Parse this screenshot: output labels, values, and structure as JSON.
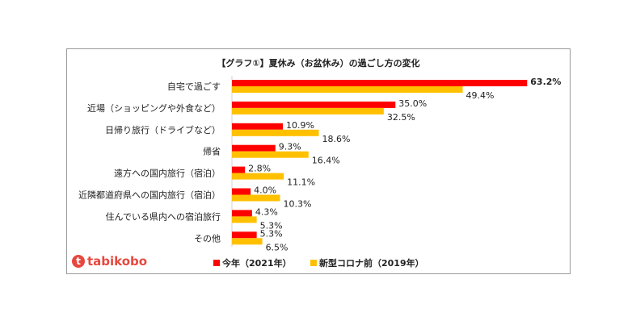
{
  "chart_data": {
    "type": "bar",
    "orientation": "horizontal",
    "title": "【グラフ①】夏休み（お盆休み）の過ごし方の変化",
    "categories": [
      "自宅で過ごす",
      "近場（ショッピングや外食など）",
      "日帰り旅行（ドライブなど）",
      "帰省",
      "遠方への国内旅行（宿泊）",
      "近隣都道府県への国内旅行（宿泊）",
      "住んでいる県内への宿泊旅行",
      "その他"
    ],
    "series": [
      {
        "name": "今年（2021年）",
        "color": "#ff0000",
        "values": [
          63.2,
          35.0,
          10.9,
          9.3,
          2.8,
          4.0,
          4.3,
          5.3
        ]
      },
      {
        "name": "新型コロナ前（2019年）",
        "color": "#ffc000",
        "values": [
          49.4,
          32.5,
          18.6,
          16.4,
          11.1,
          10.3,
          5.3,
          6.5
        ]
      }
    ],
    "unit": "%",
    "grid": false,
    "legend": "bottom"
  },
  "logo": {
    "text": "tabikobo"
  }
}
